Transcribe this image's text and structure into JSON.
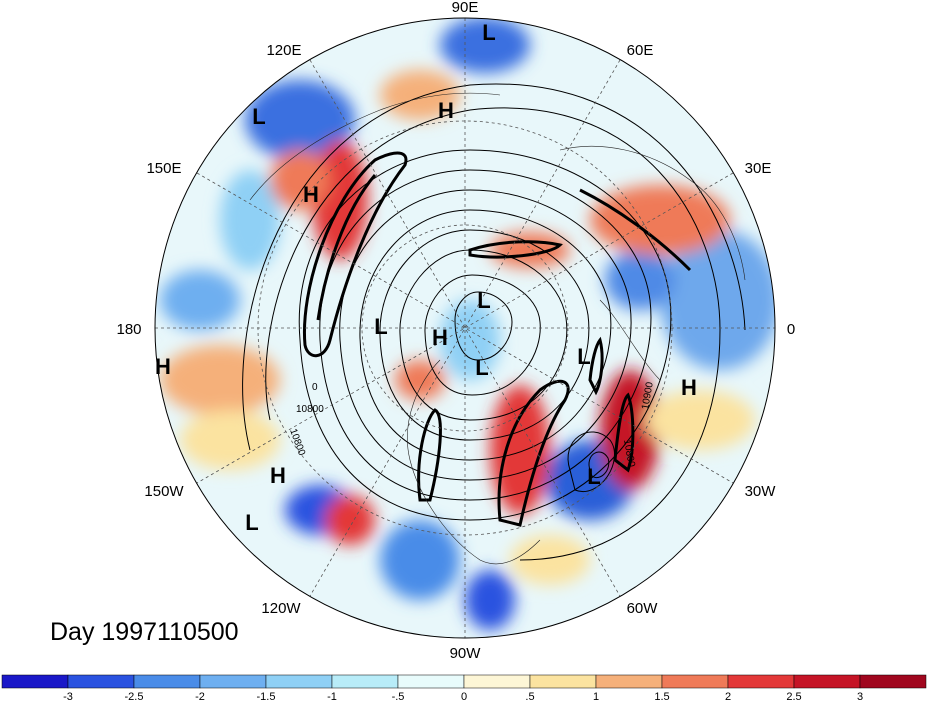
{
  "title": "Day 1997110500",
  "longitude_labels": [
    "90E",
    "60E",
    "30E",
    "0",
    "30W",
    "60W",
    "90W",
    "120W",
    "150W",
    "180",
    "150E",
    "120E"
  ],
  "pressure_centers": [
    "L",
    "H",
    "L",
    "H",
    "L",
    "L",
    "H",
    "L",
    "L",
    "L",
    "H",
    "H",
    "L",
    "H"
  ],
  "contour_labels": [
    "10800",
    "10900",
    "10800",
    "10800",
    "0"
  ],
  "colorbar": {
    "ticks": [
      "-3",
      "-2.5",
      "-2",
      "-1.5",
      "-1",
      "-.5",
      "0",
      ".5",
      "1",
      "1.5",
      "2",
      "2.5",
      "3"
    ],
    "colors": [
      "#1a18c8",
      "#2a52e0",
      "#4a8ce8",
      "#6eaff0",
      "#8fd0f5",
      "#b8ecf8",
      "#e8fbfb",
      "#fdf6d6",
      "#fbe3a0",
      "#f5b07a",
      "#ef7a58",
      "#e33838",
      "#c51426",
      "#a0061e"
    ]
  }
}
